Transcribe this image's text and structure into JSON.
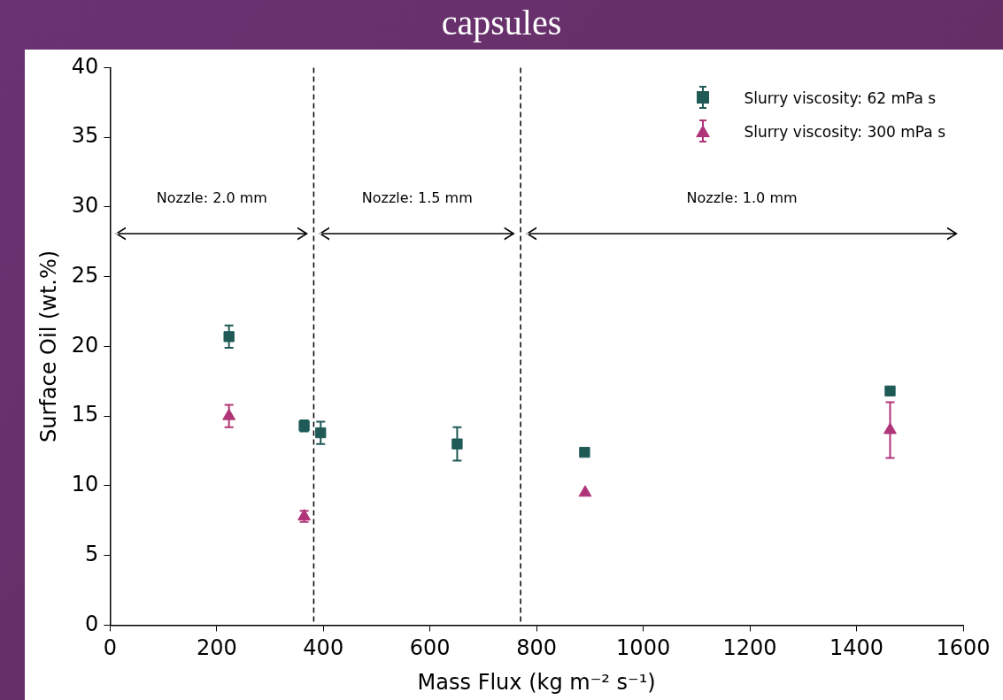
{
  "chart_data": {
    "type": "scatter",
    "title": "capsules",
    "xlabel": "Mass Flux (kg m⁻² s⁻¹)",
    "ylabel": "Surface Oil (wt.%)",
    "xlim": [
      0,
      1600
    ],
    "xticks": [
      0,
      200,
      400,
      600,
      800,
      1000,
      1200,
      1400,
      1600
    ],
    "ylim": [
      0,
      40
    ],
    "yticks": [
      0,
      5,
      10,
      15,
      20,
      25,
      30,
      35,
      40
    ],
    "grid": false,
    "legend": "top right",
    "series": [
      {
        "name": "Slurry viscosity: 62 mPa s",
        "color": "#1f5a57",
        "marker": "square",
        "x": [
          223,
          364,
          395,
          651,
          890,
          1463
        ],
        "values": [
          20.7,
          14.3,
          13.8,
          13.0,
          12.4,
          16.8
        ],
        "errors": [
          0.8,
          0.4,
          0.8,
          1.2,
          null,
          null
        ]
      },
      {
        "name": "Slurry viscosity: 300 mPa s",
        "color": "#b03578",
        "marker": "triangle",
        "x": [
          223,
          364,
          891,
          1463
        ],
        "values": [
          15.0,
          7.8,
          9.5,
          14.0
        ],
        "errors": [
          0.8,
          0.4,
          null,
          2.0
        ]
      }
    ],
    "ref_lines": [
      {
        "axis": "x",
        "value": 382,
        "color": "#000000",
        "line_style": "dashed"
      },
      {
        "axis": "x",
        "value": 770,
        "color": "#000000",
        "line_style": "dashed"
      }
    ],
    "annotations": [
      "Nozzle: 2.0 mm",
      "Nozzle: 1.5 mm",
      "Nozzle: 1.0 mm"
    ]
  }
}
